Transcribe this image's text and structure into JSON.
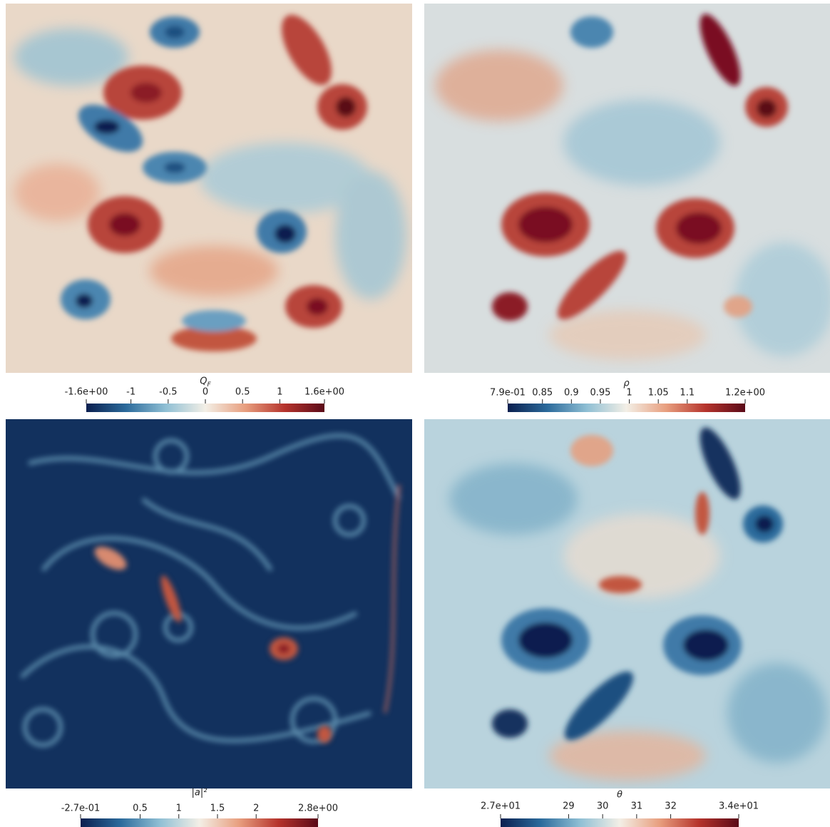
{
  "chart_data": [
    {
      "type": "colorbar",
      "title": "Q",
      "title_subscript": "F",
      "xlim": [
        -1.6,
        1.6
      ],
      "xticks": [
        {
          "value": -1.6,
          "label": "-1.6e+00"
        },
        -1,
        -0.5,
        0,
        0.5,
        1,
        {
          "value": 1.6,
          "label": "1.6e+00"
        }
      ],
      "colormap": [
        "#0a1f4f",
        "#2b6a9b",
        "#8fbfd4",
        "#f3efe6",
        "#e89f7f",
        "#b5332c",
        "#5a0a18"
      ]
    },
    {
      "type": "colorbar",
      "title": "ρ",
      "xlim": [
        0.79,
        1.2
      ],
      "xticks": [
        {
          "value": 0.79,
          "label": "7.9e-01"
        },
        0.85,
        0.9,
        0.95,
        1,
        1.05,
        1.1,
        {
          "value": 1.2,
          "label": "1.2e+00"
        }
      ],
      "colormap": [
        "#0a1f4f",
        "#2b6a9b",
        "#8fbfd4",
        "#f3efe6",
        "#e89f7f",
        "#b5332c",
        "#5a0a18"
      ]
    },
    {
      "type": "colorbar",
      "title": "|a|²",
      "xlim": [
        -0.27,
        2.8
      ],
      "xticks": [
        {
          "value": -0.27,
          "label": "-2.7e-01"
        },
        0.5,
        1,
        1.5,
        2,
        {
          "value": 2.8,
          "label": "2.8e+00"
        }
      ],
      "colormap": [
        "#0a1f4f",
        "#2b6a9b",
        "#8fbfd4",
        "#f3efe6",
        "#e89f7f",
        "#b5332c",
        "#5a0a18"
      ]
    },
    {
      "type": "colorbar",
      "title": "θ",
      "xlim": [
        27,
        34
      ],
      "xticks": [
        {
          "value": 27,
          "label": "2.7e+01"
        },
        29,
        30,
        31,
        32,
        {
          "value": 34,
          "label": "3.4e+01"
        }
      ],
      "colormap": [
        "#0a1f4f",
        "#2b6a9b",
        "#8fbfd4",
        "#f3efe6",
        "#e89f7f",
        "#b5332c",
        "#5a0a18"
      ]
    }
  ]
}
